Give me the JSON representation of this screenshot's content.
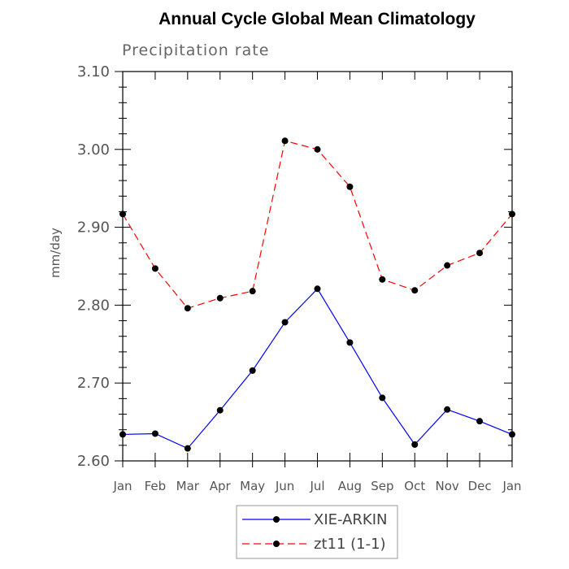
{
  "chart_data": {
    "type": "line",
    "title": "Annual Cycle Global Mean Climatology",
    "subtitle": "Precipitation rate",
    "xlabel": "",
    "ylabel": "mm/day",
    "categories": [
      "Jan",
      "Feb",
      "Mar",
      "Apr",
      "May",
      "Jun",
      "Jul",
      "Aug",
      "Sep",
      "Oct",
      "Nov",
      "Dec",
      "Jan"
    ],
    "ylim": [
      2.6,
      3.1
    ],
    "yticks": [
      "3.10",
      "3.00",
      "2.90",
      "2.80",
      "2.70",
      "2.60"
    ],
    "grid": false,
    "legend_position": "bottom-center",
    "series": [
      {
        "name": "XIE-ARKIN",
        "color": "#0000ff",
        "line_style": "solid",
        "marker": "filled-circle",
        "values": [
          2.634,
          2.635,
          2.616,
          2.665,
          2.716,
          2.778,
          2.821,
          2.752,
          2.681,
          2.621,
          2.666,
          2.651,
          2.634
        ]
      },
      {
        "name": "zt11 (1-1)",
        "color": "#ff0000",
        "line_style": "dashed",
        "marker": "filled-circle",
        "values": [
          2.917,
          2.847,
          2.796,
          2.809,
          2.818,
          3.011,
          3.0,
          2.952,
          2.833,
          2.819,
          2.851,
          2.867,
          2.917
        ]
      }
    ]
  }
}
